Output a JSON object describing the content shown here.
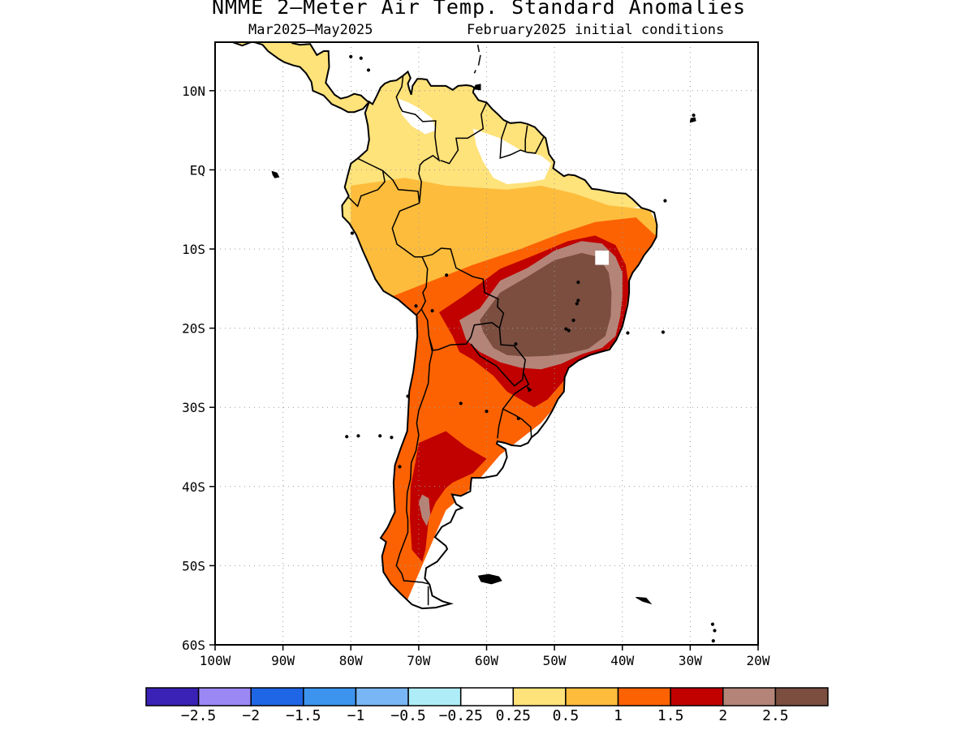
{
  "title": "NMME 2—Meter Air Temp. Standard Anomalies",
  "subtitle_left": "Mar2025—May2025",
  "subtitle_right": "February2025 initial conditions",
  "map_extent": {
    "lon": [
      -100,
      -20
    ],
    "lat": [
      -60,
      6
    ]
  },
  "lat_ticks": [
    {
      "lat": 10,
      "label": "10N"
    },
    {
      "lat": 0,
      "label": "EQ"
    },
    {
      "lat": -10,
      "label": "10S"
    },
    {
      "lat": -20,
      "label": "20S"
    },
    {
      "lat": -30,
      "label": "30S"
    },
    {
      "lat": -40,
      "label": "40S"
    },
    {
      "lat": -50,
      "label": "50S"
    },
    {
      "lat": -60,
      "label": "60S"
    }
  ],
  "lon_ticks": [
    {
      "lon": -100,
      "label": "100W"
    },
    {
      "lon": -90,
      "label": "90W"
    },
    {
      "lon": -80,
      "label": "80W"
    },
    {
      "lon": -70,
      "label": "70W"
    },
    {
      "lon": -60,
      "label": "60W"
    },
    {
      "lon": -50,
      "label": "50W"
    },
    {
      "lon": -40,
      "label": "40W"
    },
    {
      "lon": -30,
      "label": "30W"
    },
    {
      "lon": -20,
      "label": "20W"
    }
  ],
  "colorbar": {
    "colors": [
      "#3b22b7",
      "#9b88f5",
      "#1f66e6",
      "#3c94ef",
      "#78b6f5",
      "#aeedf8",
      "#ffffff",
      "#fee27a",
      "#fdbc3c",
      "#fc6202",
      "#c10000",
      "#b48478",
      "#7b4e40"
    ],
    "labels": [
      "−2.5",
      "−2",
      "−1.5",
      "−1",
      "−0.5",
      "−0.25",
      "0.25",
      "0.5",
      "1",
      "1.5",
      "2",
      "2.5"
    ]
  }
}
